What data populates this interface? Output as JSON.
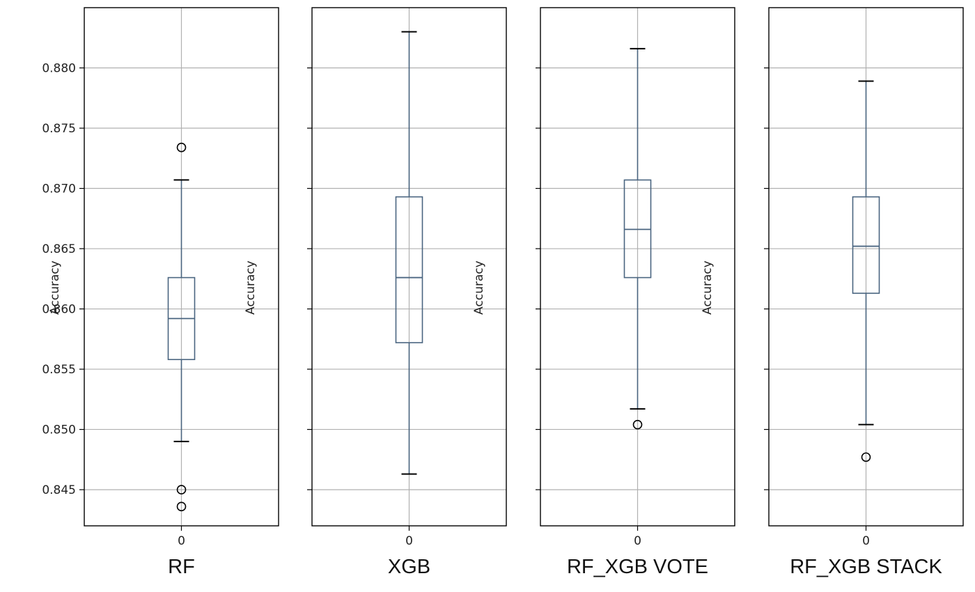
{
  "chart_data": {
    "type": "boxplot",
    "ylabel": "Accuracy",
    "ylim": [
      0.842,
      0.885
    ],
    "yticks": [
      0.845,
      0.85,
      0.855,
      0.86,
      0.865,
      0.87,
      0.875,
      0.88
    ],
    "ytick_labels": [
      "0.845",
      "0.850",
      "0.855",
      "0.860",
      "0.865",
      "0.870",
      "0.875",
      "0.880"
    ],
    "shared_y": true,
    "grid": true,
    "colors": {
      "box": "#4a6580",
      "median": "#4a6580",
      "frame": "#000000",
      "grid": "#b0b0b0"
    },
    "subplots": [
      {
        "xlabel": "RF",
        "xtick_label": "0",
        "whisker_low": 0.849,
        "q1": 0.8558,
        "median": 0.8592,
        "q3": 0.8626,
        "whisker_high": 0.8707,
        "outliers": [
          0.8734,
          0.845,
          0.8436
        ]
      },
      {
        "xlabel": "XGB",
        "xtick_label": "0",
        "whisker_low": 0.8463,
        "q1": 0.8572,
        "median": 0.8626,
        "q3": 0.8693,
        "whisker_high": 0.883,
        "outliers": []
      },
      {
        "xlabel": "RF_XGB VOTE",
        "xtick_label": "0",
        "whisker_low": 0.8517,
        "q1": 0.8626,
        "median": 0.8666,
        "q3": 0.8707,
        "whisker_high": 0.8816,
        "outliers": [
          0.8504
        ]
      },
      {
        "xlabel": "RF_XGB STACK",
        "xtick_label": "0",
        "whisker_low": 0.8504,
        "q1": 0.8613,
        "median": 0.8652,
        "q3": 0.8693,
        "whisker_high": 0.8789,
        "outliers": [
          0.8477
        ]
      }
    ]
  }
}
